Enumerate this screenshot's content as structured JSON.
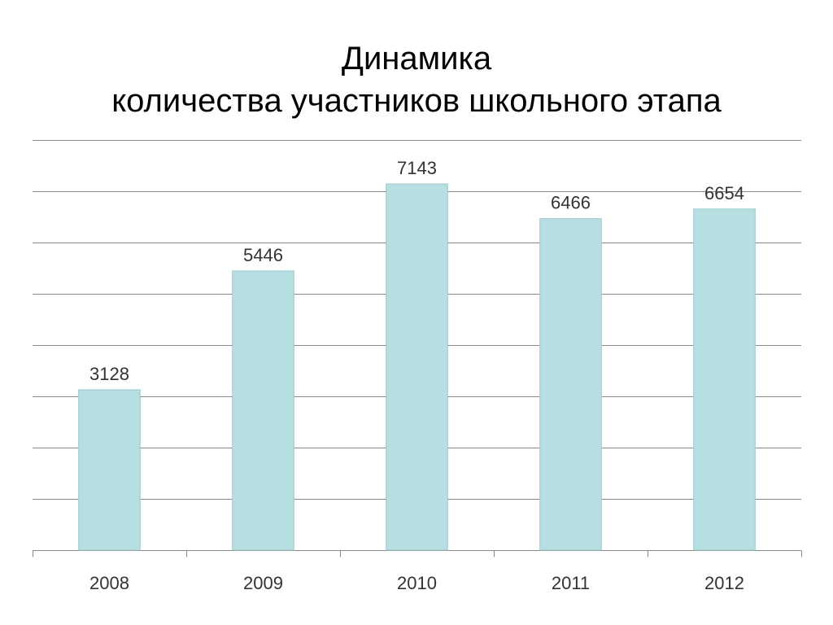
{
  "title_lines": [
    "Динамика",
    "количества участников школьного этапа"
  ],
  "colors": {
    "bar_fill": "#b7dfe2",
    "bar_stroke": "#9fc9cc",
    "grid": "#888888",
    "axis": "#888888",
    "text": "#333333"
  },
  "chart_data": {
    "type": "bar",
    "title": "Динамика количества участников школьного этапа",
    "categories": [
      "2008",
      "2009",
      "2010",
      "2011",
      "2012"
    ],
    "values": [
      3128,
      5446,
      7143,
      6466,
      6654
    ],
    "data_labels": [
      "3128",
      "5446",
      "7143",
      "6466",
      "6654"
    ],
    "xlabel": "",
    "ylabel": "",
    "ylim": [
      0,
      8000
    ],
    "y_grid_step": 1000,
    "grid": true,
    "y_tick_labels_visible": false,
    "legend": false
  }
}
